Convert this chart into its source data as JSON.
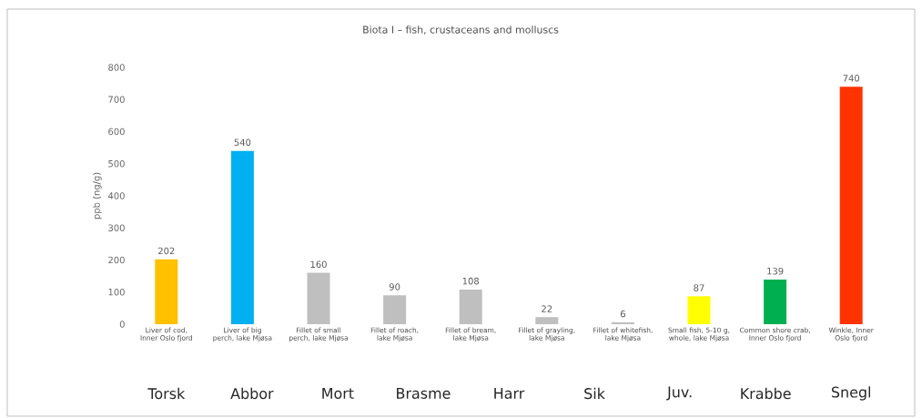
{
  "chart_data": {
    "type": "bar",
    "title": "Biota I – fish, crustaceans and molluscs",
    "ylabel": "ppb (ng/g)",
    "categories": [
      "Liver of cod, Inner Oslo fjord",
      "Liver of big perch, lake Mjøsa",
      "Fillet of small perch, lake Mjøsa",
      "Fillet of roach, lake Mjøsa",
      "Fillet of bream, lake Mjøsa",
      "Fillet of grayling, lake Mjøsa",
      "Fillet of whitefish, lake Mjøsa",
      "Small fish, 5-10 g, whole, lake Mjøsa",
      "Common shore crab, Inner Oslo fjord",
      "Winkle, Inner Oslo fjord"
    ],
    "values": [
      202,
      540,
      160,
      90,
      108,
      22,
      6,
      87,
      139,
      740
    ],
    "colors": [
      "#ffc000",
      "#00b0f0",
      "#bfbfbf",
      "#bfbfbf",
      "#bfbfbf",
      "#bfbfbf",
      "#bfbfbf",
      "#ffff00",
      "#00b050",
      "#ff3300"
    ],
    "data_labels": true,
    "ylim": [
      0,
      800
    ],
    "yticks": [
      0,
      100,
      200,
      300,
      400,
      500,
      600,
      700,
      800
    ],
    "annotations": [
      "Torsk",
      "Abbor",
      "Mort",
      "Brasme",
      "Harr",
      "Sik",
      "Juv.",
      "Krabbe",
      "Snegl"
    ]
  }
}
